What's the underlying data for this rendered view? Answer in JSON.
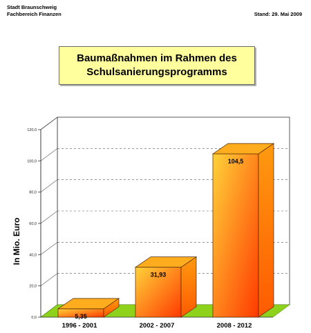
{
  "header": {
    "org_line1": "Stadt Braunschweig",
    "org_line2": "Fachbereich  Finanzen",
    "stand": "Stand: 29. Mai 2009"
  },
  "chart_data": {
    "type": "bar",
    "title_line1": "Baumaßnahmen im Rahmen des",
    "title_line2": "Schulsanierungsprogramms",
    "ylabel": "In Mio. Euro",
    "xlabel": "",
    "categories": [
      "1996 - 2001",
      "2002 - 2007",
      "2008 - 2012"
    ],
    "values": [
      5.35,
      31.93,
      104.5
    ],
    "value_labels": [
      "5,35",
      "31,93",
      "104,5"
    ],
    "ylim": [
      0,
      120
    ],
    "yticks": [
      0,
      20,
      40,
      60,
      80,
      100,
      120
    ],
    "ytick_labels": [
      "0,0",
      "20,0",
      "40,0",
      "60,0",
      "80,0",
      "100,0",
      "120,0"
    ],
    "grid": true,
    "three_d": true,
    "colors": {
      "bar_light": "#ffd23a",
      "bar_dark": "#ff3a00",
      "bar_top": "#ffac1e",
      "bar_side": "#ff5a00",
      "floor": "#8fd21c",
      "floor_edge": "#5e9a10"
    }
  }
}
